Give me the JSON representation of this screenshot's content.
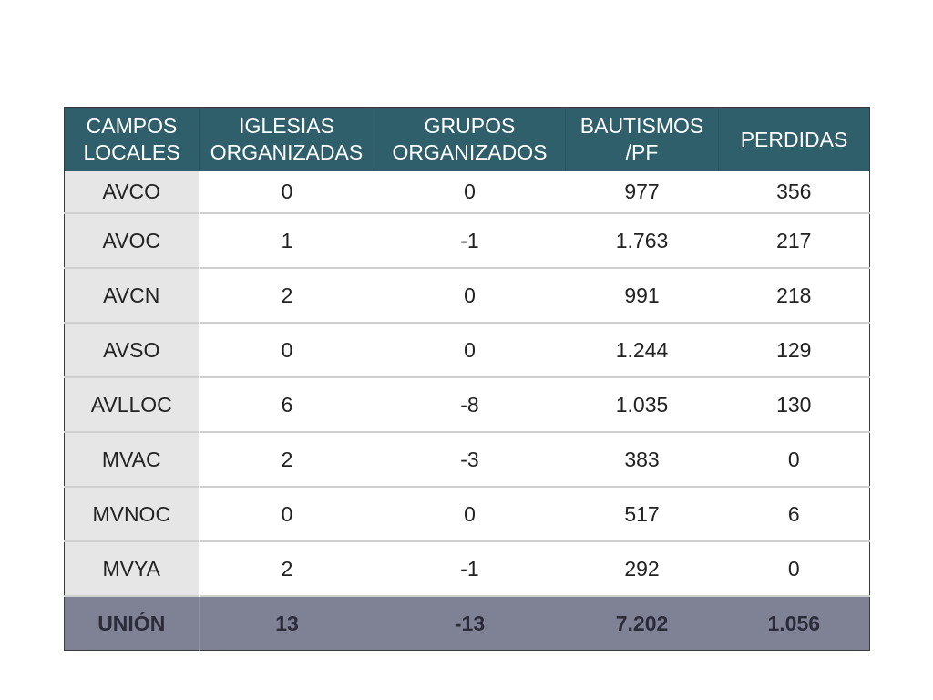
{
  "table": {
    "headers": [
      [
        "CAMPOS",
        "LOCALES"
      ],
      [
        "IGLESIAS",
        "ORGANIZADAS"
      ],
      [
        "GRUPOS",
        "ORGANIZADOS"
      ],
      [
        "BAUTISMOS",
        "/PF"
      ],
      [
        "PERDIDAS"
      ]
    ],
    "rows": [
      [
        "AVCO",
        "0",
        "0",
        "977",
        "356"
      ],
      [
        "AVOC",
        "1",
        "-1",
        "1.763",
        "217"
      ],
      [
        "AVCN",
        "2",
        "0",
        "991",
        "218"
      ],
      [
        "AVSO",
        "0",
        "0",
        "1.244",
        "129"
      ],
      [
        "AVLLOC",
        "6",
        "-8",
        "1.035",
        "130"
      ],
      [
        "MVAC",
        "2",
        "-3",
        "383",
        "0"
      ],
      [
        "MVNOC",
        "0",
        "0",
        "517",
        "6"
      ],
      [
        "MVYA",
        "2",
        "-1",
        "292",
        "0"
      ]
    ],
    "total": [
      "UNIÓN",
      "13",
      "-13",
      "7.202",
      "1.056"
    ]
  },
  "colors": {
    "header_bg": "#2f5f6a",
    "first_col_bg": "#e6e6e6",
    "total_row_bg": "#7f8195"
  }
}
